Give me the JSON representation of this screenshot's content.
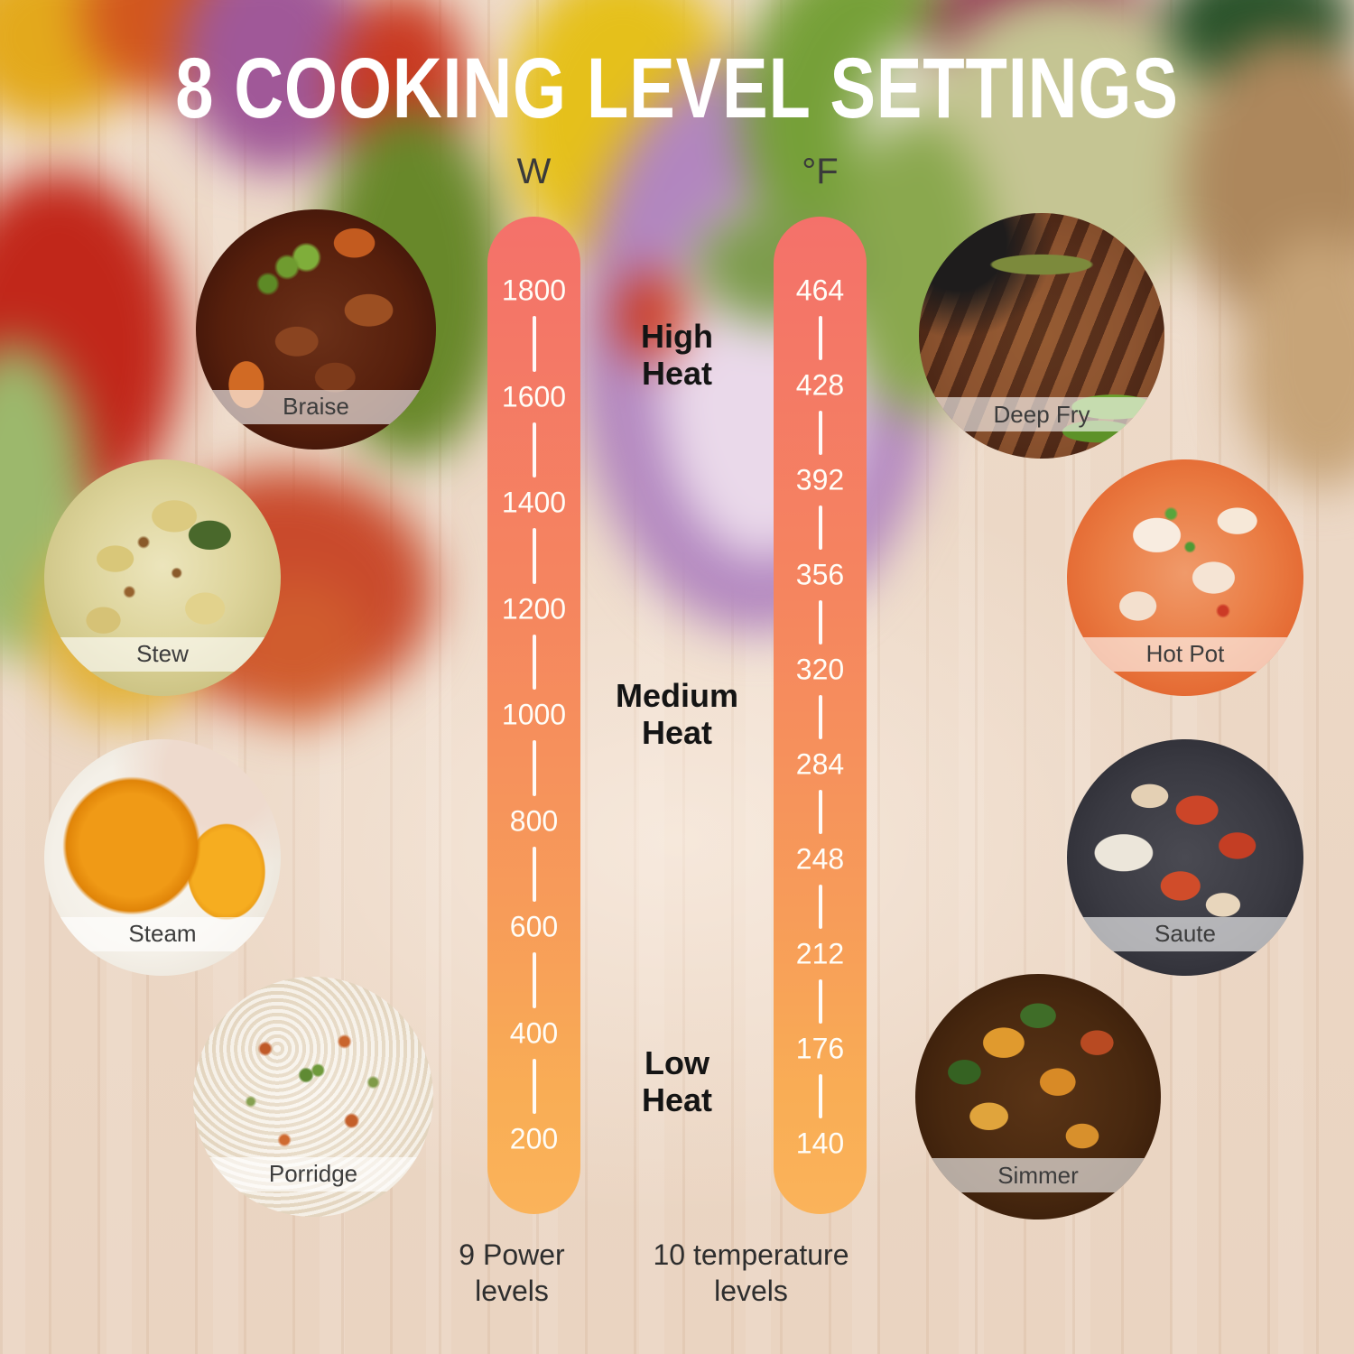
{
  "title": "8 COOKING LEVEL SETTINGS",
  "scales": {
    "power": {
      "unit": "W",
      "values": [
        "1800",
        "1600",
        "1400",
        "1200",
        "1000",
        "800",
        "600",
        "400",
        "200"
      ],
      "caption": "9 Power levels"
    },
    "temperature": {
      "unit": "°F",
      "values": [
        "464",
        "428",
        "392",
        "356",
        "320",
        "284",
        "248",
        "212",
        "176",
        "140"
      ],
      "caption": "10 temperature levels"
    }
  },
  "heat_zones": [
    {
      "label": "High Heat"
    },
    {
      "label": "Medium Heat"
    },
    {
      "label": "Low Heat"
    }
  ],
  "foods": [
    {
      "label": "Braise"
    },
    {
      "label": "Stew"
    },
    {
      "label": "Steam"
    },
    {
      "label": "Porridge"
    },
    {
      "label": "Deep Fry"
    },
    {
      "label": "Hot Pot"
    },
    {
      "label": "Saute"
    },
    {
      "label": "Simmer"
    }
  ],
  "colors": {
    "bar_gradient_top": "#f4716a",
    "bar_gradient_bottom": "#fab35a",
    "scale_text": "#ffffff",
    "heat_text": "#141414",
    "label_band": "rgba(255,255,255,0.62)"
  }
}
